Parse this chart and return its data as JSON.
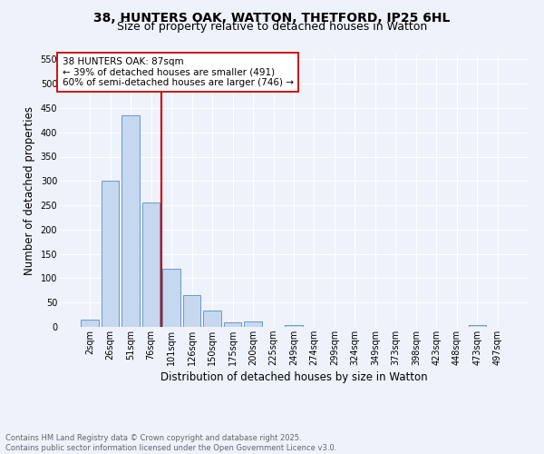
{
  "title1": "38, HUNTERS OAK, WATTON, THETFORD, IP25 6HL",
  "title2": "Size of property relative to detached houses in Watton",
  "xlabel": "Distribution of detached houses by size in Watton",
  "ylabel": "Number of detached properties",
  "categories": [
    "2sqm",
    "26sqm",
    "51sqm",
    "76sqm",
    "101sqm",
    "126sqm",
    "150sqm",
    "175sqm",
    "200sqm",
    "225sqm",
    "249sqm",
    "274sqm",
    "299sqm",
    "324sqm",
    "349sqm",
    "373sqm",
    "398sqm",
    "423sqm",
    "448sqm",
    "473sqm",
    "497sqm"
  ],
  "bar_values": [
    15,
    300,
    435,
    255,
    120,
    65,
    33,
    10,
    12,
    0,
    3,
    0,
    0,
    0,
    0,
    0,
    0,
    0,
    0,
    4,
    0
  ],
  "bar_color": "#c5d8f0",
  "bar_edge_color": "#6699cc",
  "vline_color": "#cc0000",
  "annotation_text": "38 HUNTERS OAK: 87sqm\n← 39% of detached houses are smaller (491)\n60% of semi-detached houses are larger (746) →",
  "annotation_box_color": "#ffffff",
  "annotation_box_edge_color": "#cc0000",
  "ylim": [
    0,
    560
  ],
  "yticks": [
    0,
    50,
    100,
    150,
    200,
    250,
    300,
    350,
    400,
    450,
    500,
    550
  ],
  "background_color": "#eef2fb",
  "grid_color": "#ffffff",
  "footer_text": "Contains HM Land Registry data © Crown copyright and database right 2025.\nContains public sector information licensed under the Open Government Licence v3.0.",
  "title_fontsize": 10,
  "subtitle_fontsize": 9,
  "axis_label_fontsize": 8.5,
  "tick_fontsize": 7,
  "footer_fontsize": 6,
  "annotation_fontsize": 7.5
}
